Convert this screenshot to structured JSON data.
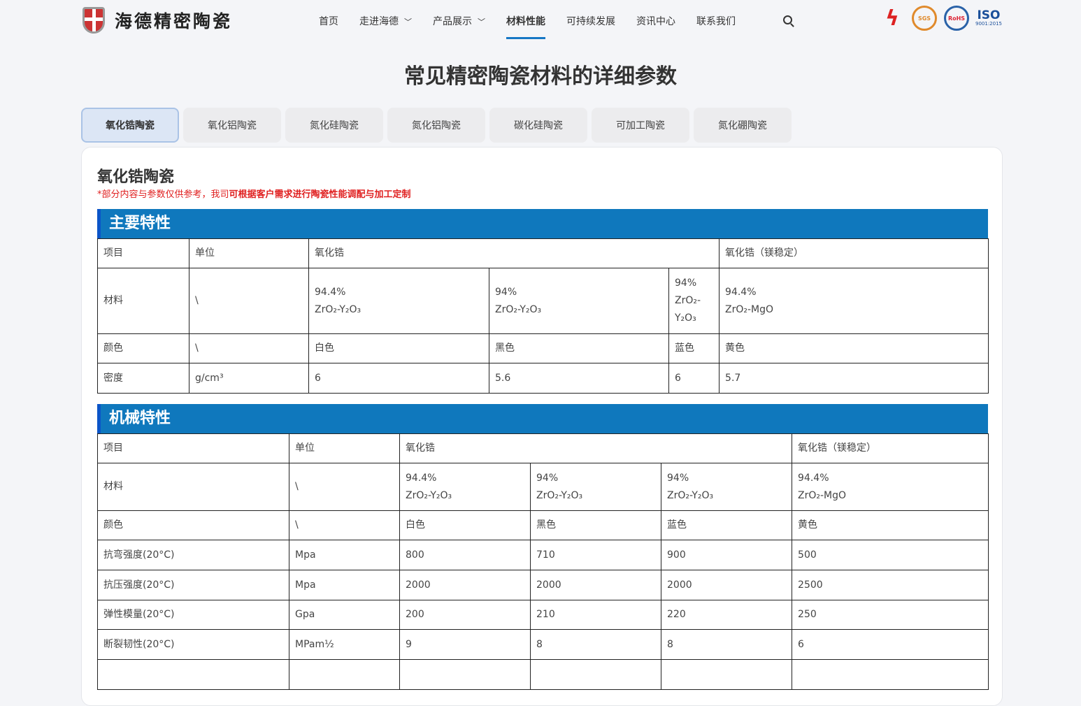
{
  "brand": {
    "name": "海德精密陶瓷"
  },
  "nav": [
    {
      "label": "首页"
    },
    {
      "label": "走进海德",
      "dropdown": true
    },
    {
      "label": "产品展示",
      "dropdown": true
    },
    {
      "label": "材料性能",
      "active": true
    },
    {
      "label": "可持续发展"
    },
    {
      "label": "资讯中心"
    },
    {
      "label": "联系我们"
    }
  ],
  "certs": {
    "cert1": "flame-logo",
    "cert2": "SGS",
    "cert3": "RoHS",
    "cert4": "ISO",
    "cert4_sub": "9001:2015"
  },
  "page_title": "常见精密陶瓷材料的详细参数",
  "tabs": [
    {
      "label": "氧化锆陶瓷",
      "active": true
    },
    {
      "label": "氧化铝陶瓷"
    },
    {
      "label": "氮化硅陶瓷"
    },
    {
      "label": "氮化铝陶瓷"
    },
    {
      "label": "碳化硅陶瓷"
    },
    {
      "label": "可加工陶瓷"
    },
    {
      "label": "氮化硼陶瓷"
    }
  ],
  "panel": {
    "title": "氧化锆陶瓷",
    "note_plain": "*部分内容与参数仅供参考，我司",
    "note_bold": "可根据客户需求进行陶瓷性能调配与加工定制"
  },
  "colors": {
    "accent": "#0f78bd",
    "note": "#e02020"
  },
  "sections": [
    {
      "title": "主要特性",
      "header": [
        "项目",
        "单位",
        "氧化锆",
        "氧化锆（镁稳定）"
      ],
      "rows": [
        [
          "材料",
          "\\",
          "94.4%\nZrO₂-Y₂O₃",
          "94%\nZrO₂-Y₂O₃",
          "94%\nZrO₂-\nY₂O₃",
          "94.4%\nZrO₂-MgO"
        ],
        [
          "颜色",
          "\\",
          "白色",
          "黑色",
          "蓝色",
          "黄色"
        ],
        [
          "密度",
          "g/cm³",
          "6",
          "5.6",
          "6",
          "5.7"
        ]
      ]
    },
    {
      "title": "机械特性",
      "header": [
        "项目",
        "单位",
        "氧化锆",
        "氧化锆（镁稳定）"
      ],
      "rows": [
        [
          "材料",
          "\\",
          "94.4%\nZrO₂-Y₂O₃",
          "94%\nZrO₂-Y₂O₃",
          "94%\nZrO₂-Y₂O₃",
          "94.4%\nZrO₂-MgO"
        ],
        [
          "颜色",
          "\\",
          "白色",
          "黑色",
          "蓝色",
          "黄色"
        ],
        [
          "抗弯强度(20°C)",
          "Mpa",
          "800",
          "710",
          "900",
          "500"
        ],
        [
          "抗压强度(20°C)",
          "Mpa",
          "2000",
          "2000",
          "2000",
          "2500"
        ],
        [
          "弹性模量(20°C)",
          "Gpa",
          "200",
          "210",
          "220",
          "250"
        ],
        [
          "断裂韧性(20°C)",
          "MPam½",
          "9",
          "8",
          "8",
          "6"
        ],
        [
          "",
          "",
          "",
          "",
          "",
          ""
        ]
      ]
    }
  ]
}
